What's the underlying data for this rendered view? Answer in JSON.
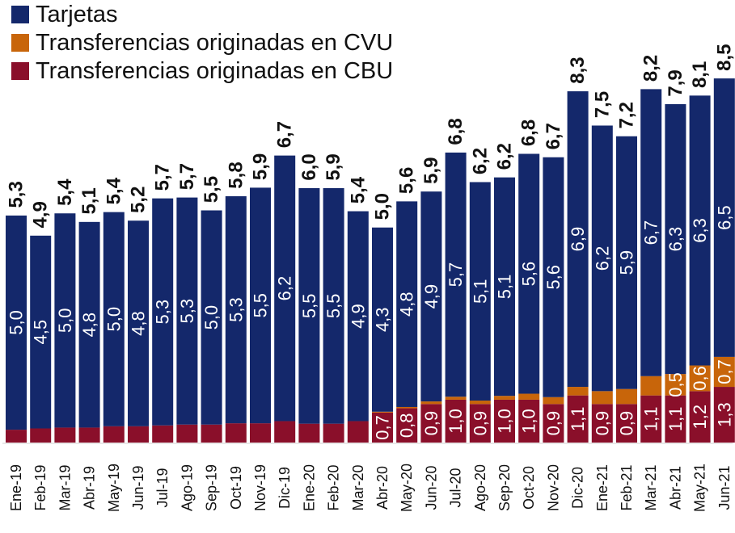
{
  "chart_data": {
    "type": "bar",
    "stacked": true,
    "categories": [
      "Ene-19",
      "Feb-19",
      "Mar-19",
      "Abr-19",
      "May-19",
      "Jun-19",
      "Jul-19",
      "Ago-19",
      "Sep-19",
      "Oct-19",
      "Nov-19",
      "Dic-19",
      "Ene-20",
      "Feb-20",
      "Mar-20",
      "Abr-20",
      "May-20",
      "Jun-20",
      "Jul-20",
      "Ago-20",
      "Sep-20",
      "Oct-20",
      "Nov-20",
      "Dic-20",
      "Ene-21",
      "Feb-21",
      "Mar-21",
      "Abr-21",
      "May-21",
      "Jun-21"
    ],
    "series": [
      {
        "name": "Transferencias originadas en CBU",
        "color": "#8a0f2a",
        "values": [
          0.3,
          0.33,
          0.35,
          0.35,
          0.38,
          0.38,
          0.4,
          0.42,
          0.42,
          0.45,
          0.45,
          0.5,
          0.44,
          0.44,
          0.5,
          0.7,
          0.8,
          0.9,
          1.0,
          0.9,
          1.0,
          1.0,
          0.9,
          1.1,
          0.9,
          0.9,
          1.1,
          1.1,
          1.2,
          1.3
        ],
        "labels": [
          "",
          "",
          "",
          "",
          "",
          "",
          "",
          "",
          "",
          "",
          "",
          "",
          "",
          "",
          "",
          "0,7",
          "0,8",
          "0,9",
          "1,0",
          "0,9",
          "1,0",
          "1,0",
          "0,9",
          "1,1",
          "0,9",
          "0,9",
          "1,1",
          "1,1",
          "1,2",
          "1,3"
        ]
      },
      {
        "name": "Transferencias originadas en CVU",
        "color": "#c8650a",
        "values": [
          0,
          0,
          0,
          0,
          0,
          0,
          0,
          0,
          0,
          0,
          0,
          0,
          0,
          0,
          0,
          0.02,
          0.03,
          0.06,
          0.07,
          0.08,
          0.09,
          0.14,
          0.16,
          0.2,
          0.3,
          0.35,
          0.45,
          0.5,
          0.6,
          0.7
        ],
        "labels": [
          "",
          "",
          "",
          "",
          "",
          "",
          "",
          "",
          "",
          "",
          "",
          "",
          "",
          "",
          "",
          "",
          "",
          "",
          "",
          "",
          "",
          "",
          "",
          "",
          "",
          "",
          "",
          "0,5",
          "0,6",
          "0,7"
        ]
      },
      {
        "name": "Tarjetas",
        "color": "#14286b",
        "values": [
          5.0,
          4.5,
          5.0,
          4.8,
          5.0,
          4.8,
          5.3,
          5.3,
          5.0,
          5.3,
          5.5,
          6.2,
          5.5,
          5.5,
          4.9,
          4.3,
          4.8,
          4.9,
          5.7,
          5.1,
          5.1,
          5.6,
          5.6,
          6.9,
          6.2,
          5.9,
          6.7,
          6.3,
          6.3,
          6.5
        ],
        "labels": [
          "5,0",
          "4,5",
          "5,0",
          "4,8",
          "5,0",
          "4,8",
          "5,3",
          "5,3",
          "5,0",
          "5,3",
          "5,5",
          "6,2",
          "5,5",
          "5,5",
          "4,9",
          "4,3",
          "4,8",
          "4,9",
          "5,7",
          "5,1",
          "5,1",
          "5,6",
          "5,6",
          "6,9",
          "6,2",
          "5,9",
          "6,7",
          "6,3",
          "6,3",
          "6,5"
        ]
      }
    ],
    "totals": [
      5.3,
      4.9,
      5.4,
      5.1,
      5.4,
      5.2,
      5.7,
      5.7,
      5.5,
      5.8,
      5.9,
      6.7,
      6.0,
      5.9,
      5.4,
      5.0,
      5.6,
      5.9,
      6.8,
      6.2,
      6.2,
      6.8,
      6.7,
      8.3,
      7.5,
      7.2,
      8.2,
      7.9,
      8.1,
      8.5
    ],
    "total_labels": [
      "5,3",
      "4,9",
      "5,4",
      "5,1",
      "5,4",
      "5,2",
      "5,7",
      "5,7",
      "5,5",
      "5,8",
      "5,9",
      "6,7",
      "6,0",
      "5,9",
      "5,4",
      "5,0",
      "5,6",
      "5,9",
      "6,8",
      "6,2",
      "6,2",
      "6,8",
      "6,7",
      "8,3",
      "7,5",
      "7,2",
      "8,2",
      "7,9",
      "8,1",
      "8,5"
    ],
    "ylim": [
      0,
      9.2
    ],
    "title": "",
    "xlabel": "",
    "ylabel": "",
    "grid": false,
    "legend_position": "top-left"
  },
  "legend": [
    {
      "label": "Tarjetas",
      "color": "#14286b"
    },
    {
      "label": "Transferencias originadas en CVU",
      "color": "#c8650a"
    },
    {
      "label": "Transferencias originadas en CBU",
      "color": "#8a0f2a"
    }
  ]
}
